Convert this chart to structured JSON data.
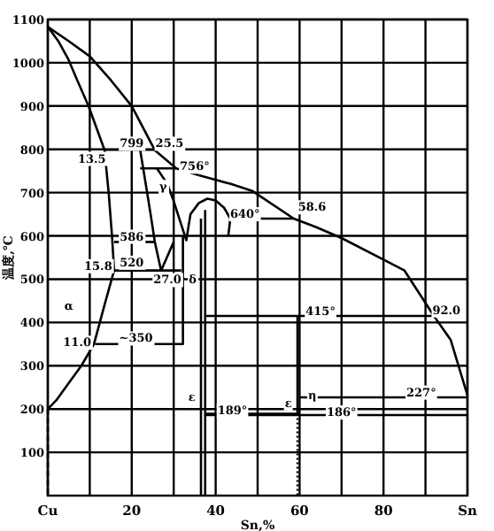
{
  "chart_data": {
    "type": "line",
    "xlabel": "Sn,%",
    "ylabel": "温度,℃",
    "xlim": [
      0,
      100
    ],
    "ylim": [
      0,
      1100
    ],
    "xticks": [
      {
        "value": 0,
        "label": "Cu"
      },
      {
        "value": 10,
        "label": null
      },
      20,
      {
        "value": 30,
        "label": null
      },
      40,
      {
        "value": 50,
        "label": null
      },
      60,
      {
        "value": 70,
        "label": null
      },
      80,
      {
        "value": 90,
        "label": null
      },
      {
        "value": 100,
        "label": "Sn"
      }
    ],
    "yticks": [
      100,
      200,
      300,
      400,
      500,
      600,
      700,
      800,
      900,
      1000,
      1100
    ],
    "grid": true,
    "series": [
      {
        "color": "#000000",
        "x": [
          0,
          5,
          10,
          15,
          20,
          25.5,
          30.6,
          36,
          43.6,
          48.7,
          58.6,
          64,
          70,
          80,
          85,
          92,
          96,
          100
        ],
        "values": [
          1083,
          1050,
          1015,
          960,
          900,
          798,
          756,
          740,
          720,
          704,
          640,
          620,
          595,
          545,
          520,
          415,
          360,
          232
        ]
      },
      {
        "color": "#000000",
        "x": [
          0,
          2.5,
          4.8,
          7,
          9.7,
          13.5,
          14.5,
          15.3,
          15.8,
          13.5,
          11,
          8,
          5,
          2,
          0
        ],
        "values": [
          1083,
          1050,
          1010,
          960,
          900,
          799,
          700,
          600,
          520,
          440,
          350,
          300,
          260,
          220,
          200
        ]
      },
      {
        "color": "#000000",
        "line_style": "dashed",
        "x": [
          0,
          0
        ],
        "values": [
          200,
          0
        ]
      },
      {
        "color": "#000000",
        "x": [
          13.5,
          25.5
        ],
        "values": [
          799,
          799
        ]
      },
      {
        "color": "#000000",
        "x": [
          22,
          30.6
        ],
        "values": [
          756,
          756
        ]
      },
      {
        "color": "#000000",
        "x": [
          22,
          23,
          24.5,
          25.5,
          27,
          30
        ],
        "values": [
          799,
          740,
          650,
          586,
          520,
          586
        ]
      },
      {
        "color": "#000000",
        "x": [
          26,
          28.5,
          30,
          32,
          33,
          34,
          36,
          38,
          40,
          42,
          43.5,
          43
        ],
        "values": [
          756,
          720,
          680,
          620,
          590,
          650,
          676,
          686,
          682,
          665,
          640,
          600
        ]
      },
      {
        "color": "#000000",
        "x": [
          15.8,
          25.5
        ],
        "values": [
          586,
          586
        ]
      },
      {
        "color": "#000000",
        "x": [
          15.8,
          31.8
        ],
        "values": [
          520,
          520
        ]
      },
      {
        "color": "#000000",
        "x": [
          11.3,
          32.2,
          32.2
        ],
        "values": [
          350,
          350,
          600
        ]
      },
      {
        "color": "#000000",
        "x": [
          36.5,
          36.5
        ],
        "values": [
          640,
          0
        ]
      },
      {
        "color": "#000000",
        "x": [
          37.5,
          37.5
        ],
        "values": [
          660,
          0
        ]
      },
      {
        "color": "#000000",
        "x": [
          44,
          58.6
        ],
        "values": [
          640,
          640
        ]
      },
      {
        "color": "#000000",
        "x": [
          37.5,
          92
        ],
        "values": [
          415,
          415
        ]
      },
      {
        "color": "#000000",
        "x": [
          59.5,
          59.5
        ],
        "values": [
          415,
          189
        ]
      },
      {
        "color": "#000000",
        "line_style": "dotted",
        "x": [
          59.5,
          59.5
        ],
        "values": [
          189,
          0
        ]
      },
      {
        "color": "#000000",
        "x": [
          60,
          100
        ],
        "values": [
          227,
          227
        ]
      },
      {
        "color": "#000000",
        "x": [
          37.5,
          60
        ],
        "values": [
          189,
          189
        ]
      },
      {
        "color": "#000000",
        "x": [
          37.5,
          100
        ],
        "values": [
          186,
          186
        ]
      }
    ],
    "annotations": [
      {
        "text": "799",
        "x": 20,
        "y": 815
      },
      {
        "text": "13.5",
        "x": 10.5,
        "y": 780
      },
      {
        "text": "25.5",
        "x": 29,
        "y": 815
      },
      {
        "text": "756°",
        "x": 35,
        "y": 762
      },
      {
        "text": "γ",
        "x": 27.5,
        "y": 715
      },
      {
        "text": "586",
        "x": 20,
        "y": 600
      },
      {
        "text": "520",
        "x": 20,
        "y": 540
      },
      {
        "text": "15.8",
        "x": 12,
        "y": 532
      },
      {
        "text": "27.0",
        "x": 28.5,
        "y": 500
      },
      {
        "text": "δ",
        "x": 34.5,
        "y": 500
      },
      {
        "text": "α",
        "x": 5,
        "y": 440
      },
      {
        "text": "11.0",
        "x": 7,
        "y": 355
      },
      {
        "text": "~350",
        "x": 21,
        "y": 365
      },
      {
        "text": "640°",
        "x": 47,
        "y": 652
      },
      {
        "text": "58.6",
        "x": 63,
        "y": 668
      },
      {
        "text": "415°",
        "x": 65,
        "y": 428
      },
      {
        "text": "92.0",
        "x": 95,
        "y": 430
      },
      {
        "text": "227°",
        "x": 89,
        "y": 240
      },
      {
        "text": "189°",
        "x": 44,
        "y": 198
      },
      {
        "text": "186°",
        "x": 70,
        "y": 194
      },
      {
        "text": "ε",
        "x": 34.3,
        "y": 228
      },
      {
        "text": "ε",
        "x": 57.3,
        "y": 215
      },
      {
        "text": "η",
        "x": 63,
        "y": 233
      }
    ]
  }
}
